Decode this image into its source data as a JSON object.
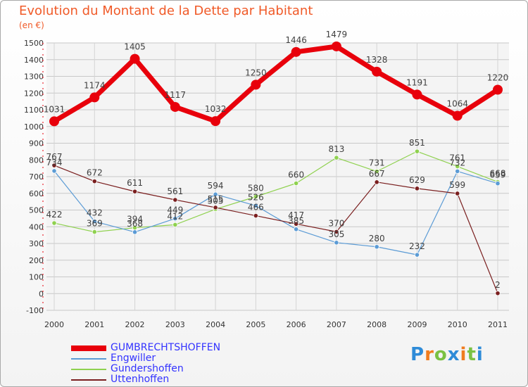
{
  "header": {
    "title": "Evolution du Montant de la Dette par Habitant",
    "subtitle": "(en €)"
  },
  "logo": {
    "letters": [
      "P",
      "r",
      "o",
      "x",
      "i",
      "t",
      "i"
    ],
    "colors": [
      "#2e8bd8",
      "#f07c1e",
      "#7ac143",
      "#2e8bd8",
      "#f07c1e",
      "#7ac143",
      "#2e8bd8"
    ]
  },
  "chart_data": {
    "type": "line",
    "title": "Evolution du Montant de la Dette par Habitant",
    "subtitle": "(en €)",
    "categories": [
      "2000",
      "2001",
      "2002",
      "2003",
      "2004",
      "2005",
      "2006",
      "2007",
      "2008",
      "2009",
      "2010",
      "2011"
    ],
    "ylim": [
      -100,
      1500
    ],
    "yticks": [
      -100,
      0,
      100,
      200,
      300,
      400,
      500,
      600,
      700,
      800,
      900,
      1000,
      1100,
      1200,
      1300,
      1400,
      1500
    ],
    "grid": true,
    "legend_position": "bottom-left",
    "series": [
      {
        "name": "GUMBRECHTSHOFFEN",
        "color": "#e8000b",
        "values": [
          1031,
          1174,
          1405,
          1117,
          1032,
          1250,
          1446,
          1479,
          1328,
          1191,
          1064,
          1220
        ]
      },
      {
        "name": "Engwiller",
        "color": "#5b9bd5",
        "values": [
          734,
          432,
          368,
          449,
          594,
          526,
          385,
          305,
          280,
          232,
          732,
          659
        ]
      },
      {
        "name": "Gundershoffen",
        "color": "#8fd14f",
        "values": [
          422,
          369,
          394,
          412,
          505,
          580,
          660,
          813,
          731,
          851,
          761,
          668
        ]
      },
      {
        "name": "Uttenhoffen",
        "color": "#7a1f1f",
        "values": [
          767,
          672,
          611,
          561,
          515,
          466,
          417,
          370,
          667,
          629,
          599,
          2
        ]
      }
    ]
  }
}
